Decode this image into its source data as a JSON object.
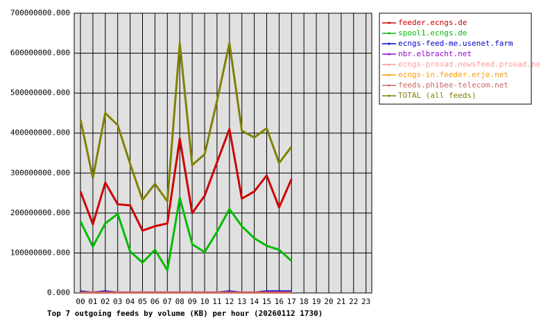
{
  "chart_data": {
    "type": "line",
    "title": "Top 7 outgoing feeds by volume (KB) per hour (20260112 1730)",
    "categories": [
      "00",
      "01",
      "02",
      "03",
      "04",
      "05",
      "06",
      "07",
      "08",
      "09",
      "10",
      "11",
      "12",
      "13",
      "14",
      "15",
      "16",
      "17",
      "18",
      "19",
      "20",
      "21",
      "22",
      "23"
    ],
    "series": [
      {
        "name": "feeder.ecngs.de",
        "color": "#cc0000",
        "values": [
          254000000,
          172000000,
          276000000,
          222000000,
          219000000,
          156000000,
          167000000,
          174000000,
          386000000,
          200000000,
          243000000,
          327000000,
          410000000,
          236000000,
          254000000,
          294000000,
          214000000,
          285000000,
          null,
          null,
          null,
          null,
          null,
          null
        ]
      },
      {
        "name": "spool1.ecngs.de",
        "color": "#00bb00",
        "values": [
          179000000,
          116000000,
          174000000,
          198000000,
          104000000,
          76000000,
          108000000,
          57000000,
          238000000,
          122000000,
          102000000,
          153000000,
          210000000,
          167000000,
          137000000,
          118000000,
          108000000,
          80000000,
          null,
          null,
          null,
          null,
          null,
          null
        ]
      },
      {
        "name": "ecngs-feed-me.usenet.farm",
        "color": "#0000cc",
        "values": [
          4000000,
          1000000,
          4000000,
          1000000,
          1000000,
          1000000,
          1000000,
          1000000,
          1000000,
          1000000,
          1000000,
          1000000,
          4000000,
          1000000,
          1000000,
          4000000,
          4000000,
          4000000,
          null,
          null,
          null,
          null,
          null,
          null
        ]
      },
      {
        "name": "nbr.elbracht.net",
        "color": "#9900cc",
        "values": [
          1000000,
          1000000,
          1000000,
          1000000,
          1000000,
          1000000,
          1000000,
          1000000,
          1000000,
          1000000,
          1000000,
          1000000,
          1000000,
          1000000,
          1000000,
          1000000,
          1000000,
          1000000,
          null,
          null,
          null,
          null,
          null,
          null
        ]
      },
      {
        "name": "ecngs-proxad.newsfeed.proxad.net",
        "color": "#ff9999",
        "values": [
          1000000,
          1000000,
          1000000,
          1000000,
          1000000,
          1000000,
          1000000,
          1000000,
          1000000,
          1000000,
          1000000,
          1000000,
          1000000,
          1000000,
          1000000,
          1000000,
          1000000,
          1000000,
          null,
          null,
          null,
          null,
          null,
          null
        ]
      },
      {
        "name": "ecngs-in.feeder.erje.net",
        "color": "#ff9900",
        "values": [
          1000000,
          1000000,
          1000000,
          1000000,
          1000000,
          1000000,
          1000000,
          1000000,
          1000000,
          1000000,
          1000000,
          1000000,
          1000000,
          1000000,
          1000000,
          1000000,
          1000000,
          1000000,
          null,
          null,
          null,
          null,
          null,
          null
        ]
      },
      {
        "name": "feeds.phibee-telecom.net",
        "color": "#cc6666",
        "values": [
          1000000,
          1000000,
          1000000,
          1000000,
          1000000,
          1000000,
          1000000,
          1000000,
          1000000,
          1000000,
          1000000,
          1000000,
          1000000,
          1000000,
          1000000,
          1000000,
          1000000,
          1000000,
          null,
          null,
          null,
          null,
          null,
          null
        ]
      },
      {
        "name": "TOTAL (all feeds)",
        "color": "#808000",
        "values": [
          434000000,
          288000000,
          450000000,
          420000000,
          323000000,
          233000000,
          273000000,
          229000000,
          625000000,
          320000000,
          347000000,
          481000000,
          625000000,
          406000000,
          389000000,
          412000000,
          325000000,
          366000000,
          null,
          null,
          null,
          null,
          null,
          null
        ]
      }
    ],
    "ylim": [
      0,
      700000000
    ],
    "yticks": [
      {
        "value": 0,
        "label": "0.000"
      },
      {
        "value": 100000000,
        "label": "100000000.000"
      },
      {
        "value": 200000000,
        "label": "200000000.000"
      },
      {
        "value": 300000000,
        "label": "300000000.000"
      },
      {
        "value": 400000000,
        "label": "400000000.000"
      },
      {
        "value": 500000000,
        "label": "500000000.000"
      },
      {
        "value": 600000000,
        "label": "600000000.000"
      },
      {
        "value": 700000000,
        "label": "700000000.000"
      }
    ],
    "grid": true
  }
}
